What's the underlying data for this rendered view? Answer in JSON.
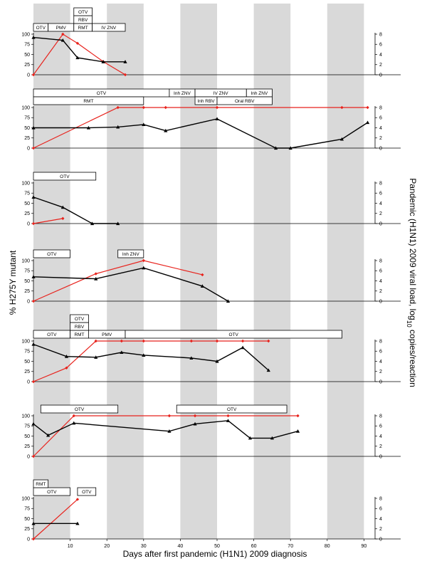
{
  "chart_data": {
    "type": "line",
    "xlabel": "Days after first pandemic (H1N1) 2009 diagnosis",
    "ylabel_left": "% H275Y mutant",
    "ylabel_right_parts": [
      "Pandemic (H1N1) 2009 viral load, log",
      "10",
      " copies/reaction"
    ],
    "x_ticks": [
      10,
      20,
      30,
      40,
      50,
      60,
      70,
      80,
      90
    ],
    "xlim": [
      0,
      100
    ],
    "shaded_bands": [
      [
        0,
        10
      ],
      [
        20,
        30
      ],
      [
        40,
        50
      ],
      [
        60,
        70
      ],
      [
        80,
        90
      ]
    ],
    "left_ticks": [
      0,
      25,
      50,
      75,
      100
    ],
    "right_ticks": [
      0,
      2,
      4,
      6,
      8
    ],
    "colors": {
      "mutant": "#000000",
      "viral_load": "#e8231d",
      "band": "#d9d9d9"
    },
    "panels": [
      {
        "bars": [
          {
            "label": "OTV",
            "x0": 0,
            "x1": 4,
            "row": 0
          },
          {
            "label": "PMV",
            "x0": 4,
            "x1": 11,
            "row": 0
          },
          {
            "label": "RMT",
            "x0": 11,
            "x1": 16,
            "row": 0
          },
          {
            "label": "RBV",
            "x0": 11,
            "x1": 16,
            "row": 1
          },
          {
            "label": "OTV",
            "x0": 11,
            "x1": 16,
            "row": 2
          },
          {
            "label": "IV ZNV",
            "x0": 16,
            "x1": 25,
            "row": 0
          }
        ],
        "mutant": [
          [
            0,
            92
          ],
          [
            8,
            85
          ],
          [
            12,
            42
          ],
          [
            19,
            32
          ],
          [
            25,
            32
          ]
        ],
        "viral_load": [
          [
            0,
            0
          ],
          [
            8,
            8
          ],
          [
            12,
            6.2
          ],
          [
            19,
            2.6
          ],
          [
            25,
            0
          ]
        ]
      },
      {
        "bars": [
          {
            "label": "OTV",
            "x0": 0,
            "x1": 37,
            "row": 1
          },
          {
            "label": "RMT",
            "x0": 0,
            "x1": 30,
            "row": 0
          },
          {
            "label": "Inh ZNV",
            "x0": 37,
            "x1": 44,
            "row": 1
          },
          {
            "label": "IV ZNV",
            "x0": 44,
            "x1": 58,
            "row": 1
          },
          {
            "label": "Inh ZNV",
            "x0": 58,
            "x1": 65,
            "row": 1
          },
          {
            "label": "Inh RBV",
            "x0": 44,
            "x1": 50,
            "row": 0
          },
          {
            "label": "Oral RBV",
            "x0": 50,
            "x1": 65,
            "row": 0
          }
        ],
        "mutant": [
          [
            0,
            50
          ],
          [
            15,
            50
          ],
          [
            23,
            52
          ],
          [
            30,
            58
          ],
          [
            36,
            43
          ],
          [
            50,
            72
          ],
          [
            66,
            0
          ],
          [
            70,
            0
          ],
          [
            84,
            22
          ],
          [
            91,
            63
          ]
        ],
        "viral_load": [
          [
            0,
            0
          ],
          [
            23,
            8
          ],
          [
            30,
            8
          ],
          [
            36,
            8
          ],
          [
            50,
            8
          ],
          [
            84,
            8
          ],
          [
            91,
            8
          ]
        ]
      },
      {
        "bars": [
          {
            "label": "OTV",
            "x0": 0,
            "x1": 17,
            "row": 0
          }
        ],
        "mutant": [
          [
            0,
            65
          ],
          [
            8,
            40
          ],
          [
            16,
            0
          ],
          [
            23,
            0
          ]
        ],
        "viral_load": [
          [
            0,
            0
          ],
          [
            8,
            1
          ]
        ]
      },
      {
        "bars": [
          {
            "label": "OTV",
            "x0": 0,
            "x1": 10,
            "row": 0
          },
          {
            "label": "Inh ZNV",
            "x0": 23,
            "x1": 30,
            "row": 0
          }
        ],
        "mutant": [
          [
            0,
            60
          ],
          [
            17,
            55
          ],
          [
            30,
            82
          ],
          [
            46,
            37
          ],
          [
            53,
            0
          ]
        ],
        "viral_load": [
          [
            0,
            0
          ],
          [
            17,
            5.4
          ],
          [
            30,
            8
          ],
          [
            46,
            5.2
          ]
        ]
      },
      {
        "bars": [
          {
            "label": "OTV",
            "x0": 0,
            "x1": 10,
            "row": 0
          },
          {
            "label": "RMT",
            "x0": 10,
            "x1": 15,
            "row": 0
          },
          {
            "label": "RBV",
            "x0": 10,
            "x1": 15,
            "row": 1
          },
          {
            "label": "OTV",
            "x0": 10,
            "x1": 15,
            "row": 2
          },
          {
            "label": "PMV",
            "x0": 15,
            "x1": 25,
            "row": 0
          },
          {
            "label": "OTV",
            "x0": 25,
            "x1": 84,
            "row": 0
          }
        ],
        "mutant": [
          [
            0,
            92
          ],
          [
            9,
            62
          ],
          [
            17,
            60
          ],
          [
            24,
            72
          ],
          [
            30,
            65
          ],
          [
            43,
            58
          ],
          [
            50,
            50
          ],
          [
            57,
            84
          ],
          [
            64,
            28
          ]
        ],
        "viral_load": [
          [
            0,
            0
          ],
          [
            9,
            2.7
          ],
          [
            17,
            8
          ],
          [
            24,
            8
          ],
          [
            30,
            8
          ],
          [
            43,
            8
          ],
          [
            50,
            8
          ],
          [
            57,
            8
          ],
          [
            64,
            8
          ]
        ]
      },
      {
        "bars": [
          {
            "label": "OTV",
            "x0": 2,
            "x1": 23,
            "row": 0
          },
          {
            "label": "OTV",
            "x0": 39,
            "x1": 69,
            "row": 0
          }
        ],
        "mutant": [
          [
            0,
            80
          ],
          [
            4,
            52
          ],
          [
            11,
            82
          ],
          [
            37,
            62
          ],
          [
            44,
            80
          ],
          [
            53,
            88
          ],
          [
            59,
            45
          ],
          [
            65,
            45
          ],
          [
            72,
            62
          ]
        ],
        "viral_load": [
          [
            0,
            0
          ],
          [
            11,
            8
          ],
          [
            37,
            8
          ],
          [
            44,
            8
          ],
          [
            53,
            8
          ],
          [
            72,
            8
          ]
        ]
      },
      {
        "bars": [
          {
            "label": "OTV",
            "x0": 0,
            "x1": 10,
            "row": 0
          },
          {
            "label": "RMT",
            "x0": 0,
            "x1": 4,
            "row": 1
          },
          {
            "label": "OTV",
            "x0": 12,
            "x1": 17,
            "row": 0
          }
        ],
        "mutant": [
          [
            0,
            38
          ],
          [
            12,
            38
          ]
        ],
        "viral_load": [
          [
            0,
            0
          ],
          [
            12,
            7.8
          ]
        ]
      }
    ]
  }
}
